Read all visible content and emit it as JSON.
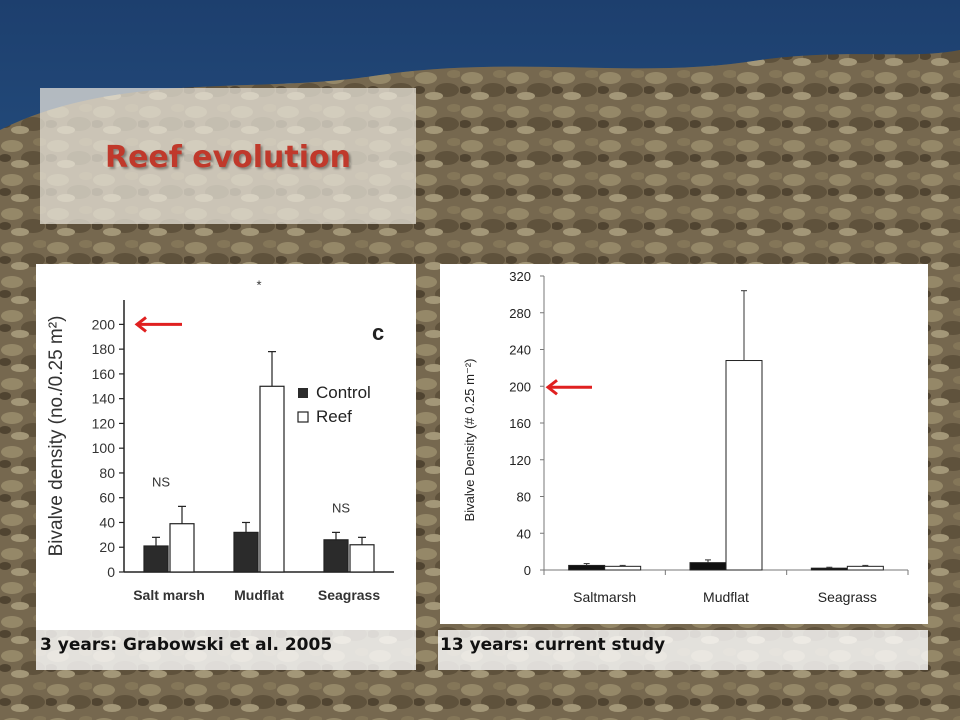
{
  "slide": {
    "title": "Reef evolution"
  },
  "captions": {
    "left": "3 years: Grabowski et al. 2005",
    "right": "13 years: current study"
  },
  "colors": {
    "title": "#c0392b",
    "arrow": "#e02020",
    "control_bar": "#2b2b2b",
    "reef_bar": "#ffffff"
  },
  "chart_data": [
    {
      "type": "bar",
      "panel_label": "c",
      "ylabel": "Bivalve density (no./0.25 m²)",
      "yticks": [
        0,
        20,
        40,
        60,
        80,
        100,
        120,
        140,
        160,
        180,
        200
      ],
      "ylim": [
        0,
        210
      ],
      "categories": [
        "Salt marsh",
        "Mudflat",
        "Seagrass"
      ],
      "series": [
        {
          "name": "Control",
          "values": [
            21,
            32,
            26
          ],
          "errors": [
            7,
            8,
            6
          ]
        },
        {
          "name": "Reef",
          "values": [
            39,
            150,
            22
          ],
          "errors": [
            14,
            28,
            6
          ]
        }
      ],
      "annotations": [
        "NS",
        "*",
        "NS"
      ],
      "legend": "top-right",
      "arrow_at": 200
    },
    {
      "type": "bar",
      "ylabel": "Bivalve Density (# 0.25 m⁻²)",
      "yticks": [
        0,
        40,
        80,
        120,
        160,
        200,
        240,
        280,
        320
      ],
      "ylim": [
        0,
        320
      ],
      "categories": [
        "Saltmarsh",
        "Mudflat",
        "Seagrass"
      ],
      "series": [
        {
          "values": [
            5,
            8,
            2
          ],
          "errors": [
            2,
            3,
            1
          ]
        },
        {
          "values": [
            4,
            228,
            4
          ],
          "errors": [
            1,
            76,
            1
          ]
        }
      ],
      "arrow_at": 200
    }
  ]
}
